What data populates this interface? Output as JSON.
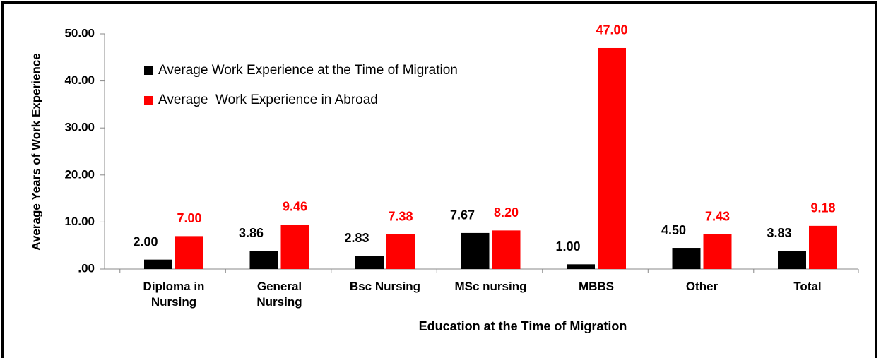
{
  "chart_data": {
    "type": "bar",
    "x_label": "Education at the Time of Migration",
    "y_label": "Average Years of Work Experience",
    "categories": [
      "Diploma in Nursing",
      "General Nursing",
      "Bsc Nursing",
      "MSc nursing",
      "MBBS",
      "Other",
      "Total"
    ],
    "series": [
      {
        "name": "Average Work Experience at the Time of Migration",
        "color": "#000000",
        "values": [
          2,
          3.86,
          2.83,
          7.67,
          1,
          4.5,
          3.83
        ],
        "value_labels": [
          "2.00",
          "3.86",
          "2.83",
          "7.67",
          "1.00",
          "4.50",
          "3.83"
        ]
      },
      {
        "name": "Average  Work Experience in Abroad",
        "color": "#ff0000",
        "values": [
          7,
          9.46,
          7.38,
          8.2,
          47,
          7.43,
          9.18
        ],
        "value_labels": [
          "7.00",
          "9.46",
          "7.38",
          "8.20",
          "47.00",
          "7.43",
          "9.18"
        ]
      }
    ],
    "ylim": [
      0,
      50
    ],
    "yticks": [
      {
        "value": 0,
        "label": ".00"
      },
      {
        "value": 10,
        "label": "10.00"
      },
      {
        "value": 20,
        "label": "20.00"
      },
      {
        "value": 30,
        "label": "30.00"
      },
      {
        "value": 40,
        "label": "40.00"
      },
      {
        "value": 50,
        "label": "50.00"
      }
    ]
  }
}
